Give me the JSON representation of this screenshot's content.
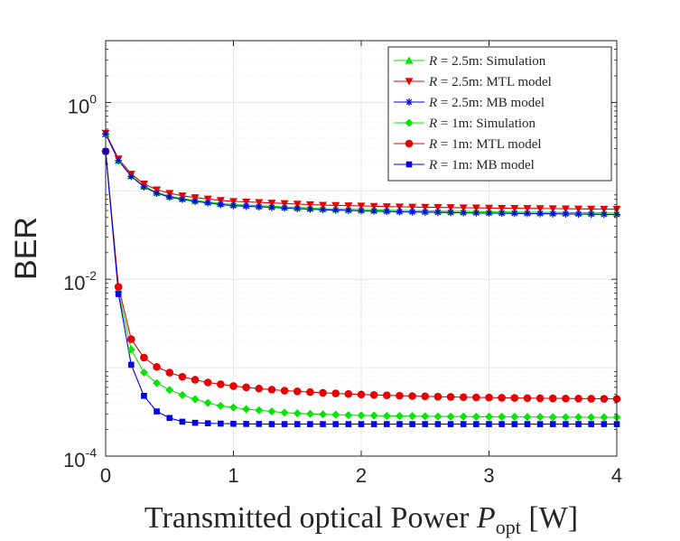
{
  "chart_data": {
    "type": "line",
    "xlabel_text": "Transmitted optical Power ",
    "xlabel_var": "P",
    "xlabel_sub": "opt",
    "xlabel_unit": " [W]",
    "ylabel": "BER",
    "yscale": "log",
    "xlim": [
      0,
      4
    ],
    "ylim": [
      0.0001,
      5
    ],
    "x_ticks": [
      0,
      1,
      2,
      3,
      4
    ],
    "x_tick_labels": [
      "0",
      "1",
      "2",
      "3",
      "4"
    ],
    "y_ticks": [
      0.0001,
      0.01,
      1
    ],
    "y_tick_labels": [
      {
        "base": "10",
        "exp": "-4"
      },
      {
        "base": "10",
        "exp": "-2"
      },
      {
        "base": "10",
        "exp": "0"
      }
    ],
    "grid": true,
    "legend_position": "top-right",
    "x": [
      0.0,
      0.1,
      0.2,
      0.3,
      0.4,
      0.5,
      0.6,
      0.7,
      0.8,
      0.9,
      1.0,
      1.1,
      1.2,
      1.3,
      1.4,
      1.5,
      1.6,
      1.7,
      1.8,
      1.9,
      2.0,
      2.1,
      2.2,
      2.3,
      2.4,
      2.5,
      2.6,
      2.7,
      2.8,
      2.9,
      3.0,
      3.1,
      3.2,
      3.3,
      3.4,
      3.5,
      3.6,
      3.7,
      3.8,
      3.9,
      4.0
    ],
    "series": [
      {
        "name": "R = 2.5m: Simulation",
        "legend_var": "R",
        "legend_rest": " = 2.5m: Simulation",
        "color": "#00e600",
        "marker": "triangle-up",
        "values": [
          0.44,
          0.22,
          0.148,
          0.113,
          0.096,
          0.087,
          0.082,
          0.078,
          0.075,
          0.072,
          0.07,
          0.069,
          0.068,
          0.067,
          0.066,
          0.065,
          0.064,
          0.063,
          0.0625,
          0.062,
          0.0615,
          0.061,
          0.0605,
          0.06,
          0.0597,
          0.0594,
          0.0591,
          0.0588,
          0.0585,
          0.0582,
          0.058,
          0.0578,
          0.0576,
          0.0574,
          0.0572,
          0.057,
          0.0568,
          0.0566,
          0.0564,
          0.0562,
          0.056
        ]
      },
      {
        "name": "R = 2.5m: MTL model",
        "legend_var": "R",
        "legend_rest": " = 2.5m: MTL model",
        "color": "#e60000",
        "marker": "triangle-down",
        "values": [
          0.45,
          0.23,
          0.155,
          0.12,
          0.103,
          0.094,
          0.088,
          0.084,
          0.081,
          0.078,
          0.076,
          0.075,
          0.074,
          0.073,
          0.072,
          0.071,
          0.07,
          0.069,
          0.0685,
          0.068,
          0.0675,
          0.067,
          0.0665,
          0.066,
          0.0657,
          0.0654,
          0.0651,
          0.0648,
          0.0645,
          0.0642,
          0.064,
          0.0638,
          0.0636,
          0.0634,
          0.0632,
          0.063,
          0.0628,
          0.0626,
          0.0624,
          0.0622,
          0.062
        ]
      },
      {
        "name": "R = 2.5m: MB model",
        "legend_var": "R",
        "legend_rest": " = 2.5m: MB model",
        "color": "#0000e6",
        "marker": "star",
        "values": [
          0.44,
          0.22,
          0.146,
          0.111,
          0.094,
          0.085,
          0.08,
          0.076,
          0.073,
          0.07,
          0.068,
          0.067,
          0.066,
          0.065,
          0.064,
          0.063,
          0.062,
          0.0612,
          0.0605,
          0.06,
          0.0595,
          0.059,
          0.0585,
          0.058,
          0.0577,
          0.0574,
          0.0571,
          0.0568,
          0.0565,
          0.0562,
          0.056,
          0.0558,
          0.0556,
          0.0554,
          0.0552,
          0.055,
          0.0548,
          0.0546,
          0.0544,
          0.0542,
          0.054
        ]
      },
      {
        "name": "R = 1m: Simulation",
        "legend_var": "R",
        "legend_rest": " = 1m: Simulation",
        "color": "#00e600",
        "marker": "diamond",
        "values": [
          0.28,
          0.0072,
          0.0016,
          0.00088,
          0.00067,
          0.00056,
          0.00049,
          0.00044,
          0.0004,
          0.00037,
          0.000355,
          0.00034,
          0.00033,
          0.00032,
          0.00031,
          0.000305,
          0.0003,
          0.000297,
          0.000294,
          0.000291,
          0.000289,
          0.000287,
          0.000285,
          0.000284,
          0.000283,
          0.000282,
          0.000281,
          0.00028,
          0.00028,
          0.000279,
          0.000279,
          0.000278,
          0.000278,
          0.000277,
          0.000277,
          0.000276,
          0.000276,
          0.000276,
          0.000275,
          0.000275,
          0.000275
        ]
      },
      {
        "name": "R = 1m: MTL model",
        "legend_var": "R",
        "legend_rest": " = 1m: MTL model",
        "color": "#e60000",
        "marker": "circle",
        "values": [
          0.28,
          0.0082,
          0.0021,
          0.0013,
          0.00102,
          0.00088,
          0.00079,
          0.00073,
          0.00068,
          0.00065,
          0.00062,
          0.0006,
          0.00058,
          0.000565,
          0.00055,
          0.00054,
          0.00053,
          0.00052,
          0.000512,
          0.000505,
          0.000498,
          0.000492,
          0.000487,
          0.000482,
          0.000478,
          0.000474,
          0.00047,
          0.000467,
          0.000464,
          0.000461,
          0.000459,
          0.000457,
          0.000455,
          0.000453,
          0.000451,
          0.00045,
          0.000448,
          0.000447,
          0.000446,
          0.000445,
          0.000444
        ]
      },
      {
        "name": "R = 1m: MB model",
        "legend_var": "R",
        "legend_rest": " = 1m: MB model",
        "color": "#0000e6",
        "marker": "square",
        "values": [
          0.28,
          0.0068,
          0.00108,
          0.00048,
          0.00032,
          0.00027,
          0.000245,
          0.000238,
          0.000235,
          0.000233,
          0.000232,
          0.000231,
          0.000231,
          0.00023,
          0.00023,
          0.00023,
          0.00023,
          0.00023,
          0.00023,
          0.00023,
          0.00023,
          0.00023,
          0.00023,
          0.00023,
          0.00023,
          0.00023,
          0.00023,
          0.00023,
          0.00023,
          0.00023,
          0.00023,
          0.00023,
          0.00023,
          0.00023,
          0.00023,
          0.00023,
          0.00023,
          0.00023,
          0.00023,
          0.00023,
          0.00023
        ]
      }
    ]
  }
}
